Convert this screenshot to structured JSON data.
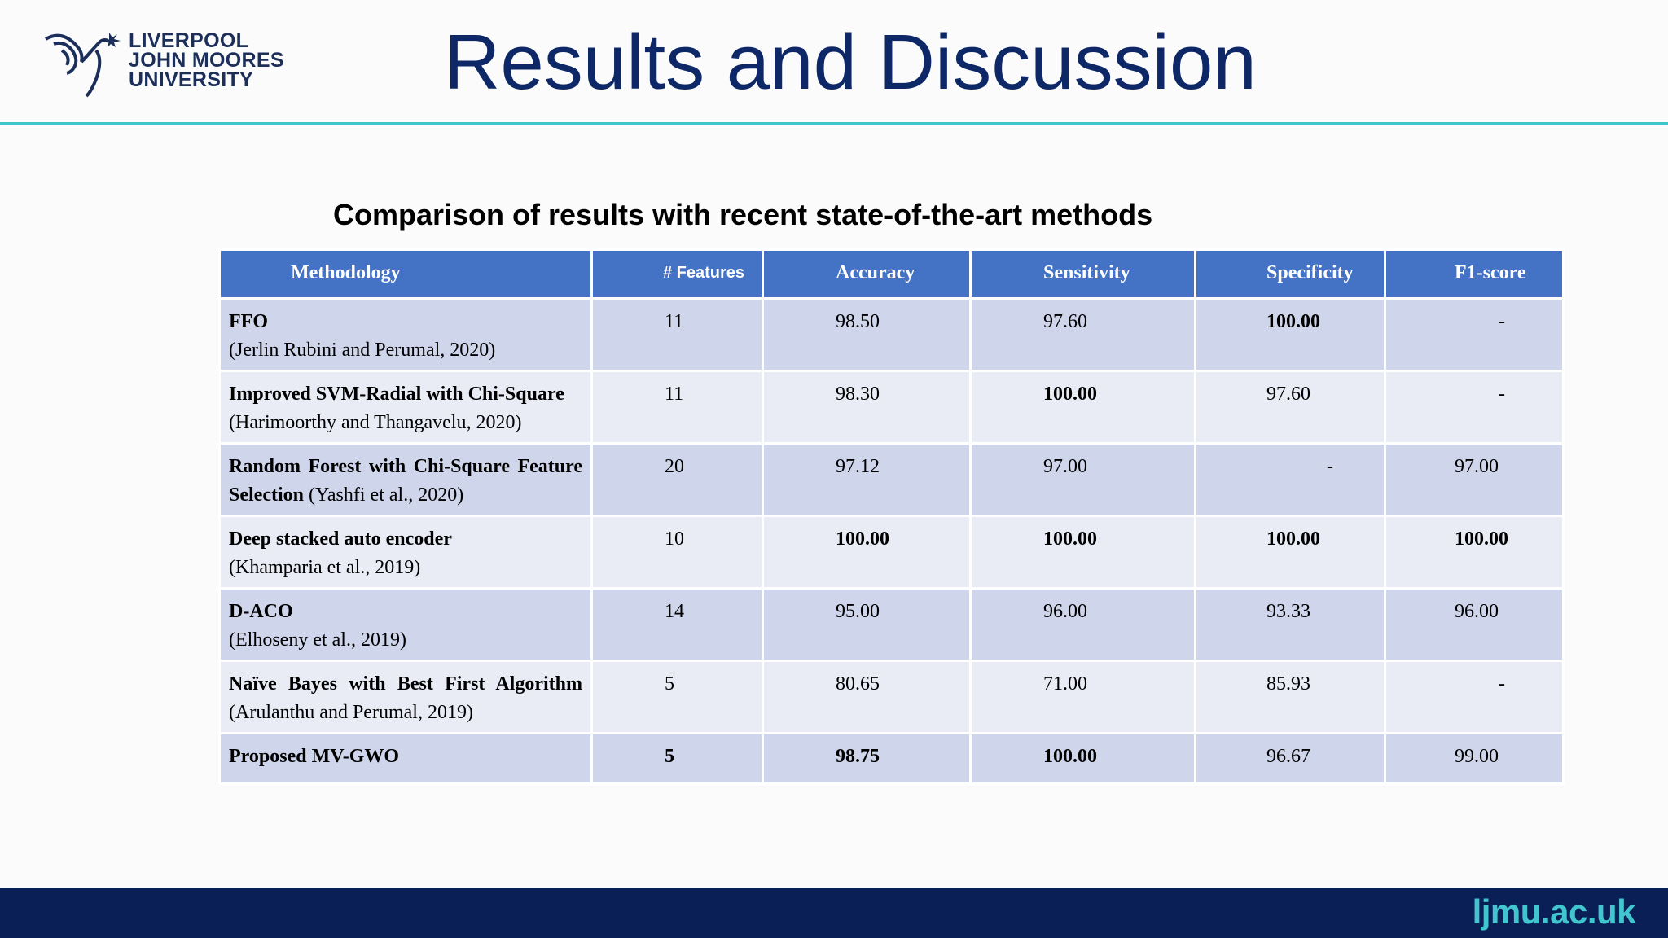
{
  "header": {
    "logo_lines": [
      "LIVERPOOL",
      "JOHN MOORES",
      "UNIVERSITY"
    ],
    "title": "Results and Discussion"
  },
  "table_title": "Comparison of results with recent state-of-the-art methods",
  "table": {
    "columns": [
      "Methodology",
      "# Features",
      "Accuracy",
      "Sensitivity",
      "Specificity",
      "F1-score"
    ],
    "rows": [
      {
        "bold": "FFO",
        "rest": "(Jerlin Rubini and Perumal, 2020)",
        "features": "11",
        "accuracy": "98.50",
        "sensitivity": "97.60",
        "specificity": "100.00",
        "f1": "-"
      },
      {
        "bold": "Improved SVM-Radial with Chi-Square",
        "rest": "(Harimoorthy and Thangavelu, 2020)",
        "features": "11",
        "accuracy": "98.30",
        "sensitivity": "100.00",
        "specificity": "97.60",
        "f1": "-"
      },
      {
        "bold": "Random Forest with Chi-Square Feature Selection",
        "rest": "(Yashfi et al., 2020)",
        "features": "20",
        "accuracy": "97.12",
        "sensitivity": "97.00",
        "specificity": "-",
        "f1": "97.00"
      },
      {
        "bold": "Deep stacked auto encoder",
        "rest": "(Khamparia et al., 2019)",
        "features": "10",
        "accuracy": "100.00",
        "sensitivity": "100.00",
        "specificity": "100.00",
        "f1": "100.00"
      },
      {
        "bold": "D-ACO",
        "rest": "(Elhoseny et al., 2019)",
        "features": "14",
        "accuracy": "95.00",
        "sensitivity": "96.00",
        "specificity": "93.33",
        "f1": "96.00"
      },
      {
        "bold": "Naïve Bayes with Best First Algorithm",
        "rest": "(Arulanthu and Perumal, 2019)",
        "features": "5",
        "accuracy": "80.65",
        "sensitivity": "71.00",
        "specificity": "85.93",
        "f1": "-"
      },
      {
        "bold": "Proposed MV-GWO",
        "rest": "",
        "features": "5",
        "accuracy": "98.75",
        "sensitivity": "100.00",
        "specificity": "96.67",
        "f1": "99.00"
      }
    ]
  },
  "footer": {
    "url": "ljmu.ac.uk"
  },
  "colors": {
    "title": "#0e2766",
    "rule": "#3cc8c8",
    "header_fill": "#4472c4",
    "row_dark": "#cfd5ea",
    "row_light": "#e9ebf5",
    "footer_bg": "#0b1f57",
    "footer_text": "#41c6cf"
  }
}
